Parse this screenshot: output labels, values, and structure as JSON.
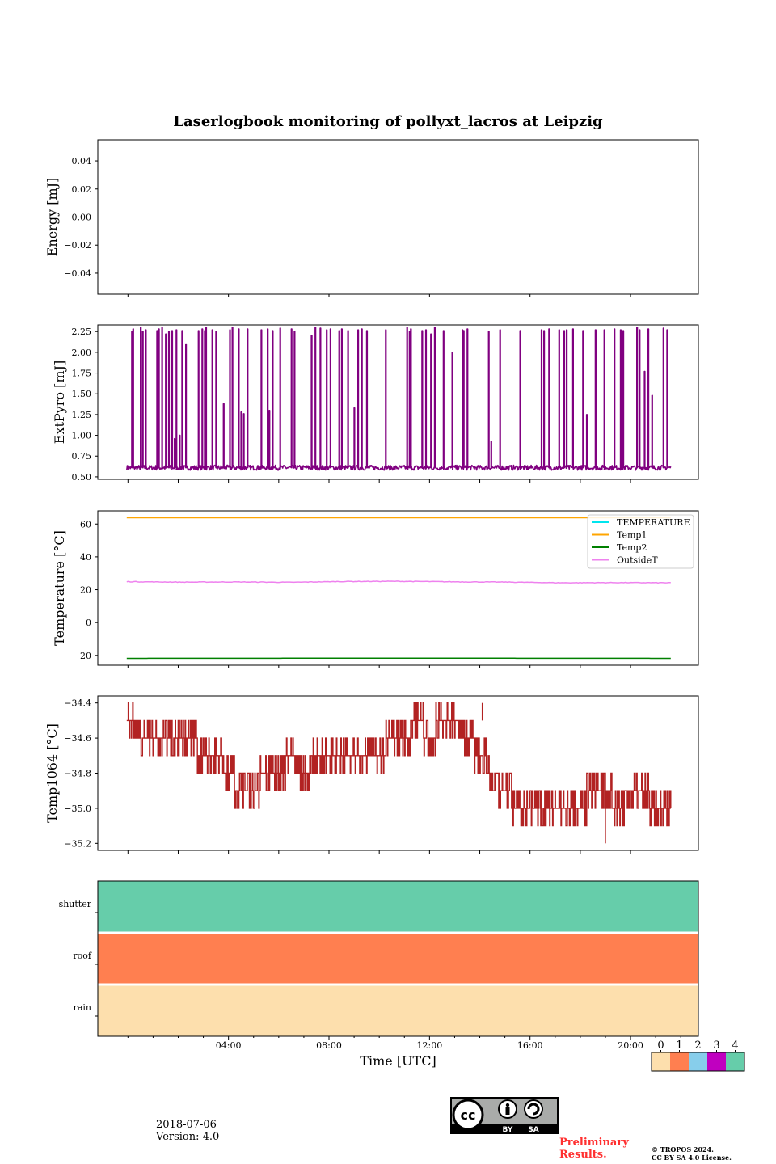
{
  "page_title": "Laserlogbook monitoring of pollyxt_lacros at Leipzig",
  "footer": {
    "date": "2018-07-06",
    "version": "Version: 4.0",
    "preliminary_1": "Preliminary",
    "preliminary_2": "Results.",
    "copyright_1": "© TROPOS 2024.",
    "copyright_2": "CC BY SA 4.0 License.",
    "cc_by": "BY",
    "cc_sa": "SA",
    "cc_logo": "cc"
  },
  "chart_data": [
    {
      "id": "energy",
      "type": "line",
      "title": "",
      "ylabel": "Energy [mJ]",
      "xlabel": "",
      "ylim": [
        -0.055,
        0.055
      ],
      "yticks": [
        0.04,
        0.02,
        0.0,
        -0.02,
        -0.04
      ],
      "ytick_labels": [
        "0.04",
        "0.02",
        "0.00",
        "−0.02",
        "−0.04"
      ],
      "xlim_hours": [
        -1.2,
        22.7
      ],
      "series": []
    },
    {
      "id": "extpyro",
      "type": "line",
      "ylabel": "ExtPyro [mJ]",
      "ylim": [
        0.47,
        2.33
      ],
      "yticks": [
        0.5,
        0.75,
        1.0,
        1.25,
        1.5,
        1.75,
        2.0,
        2.25
      ],
      "ytick_labels": [
        "0.50",
        "0.75",
        "1.00",
        "1.25",
        "1.50",
        "1.75",
        "2.00",
        "2.25"
      ],
      "xlim_hours": [
        -1.2,
        22.7
      ],
      "series": [
        {
          "name": "ExtPyro",
          "color": "#800080",
          "baseline": 0.61,
          "time_range_hours": [
            -0.05,
            21.6
          ],
          "spike_times_hours": [
            0.0,
            0.15,
            0.2,
            0.5,
            0.58,
            0.7,
            1.15,
            1.22,
            1.35,
            1.5,
            1.62,
            1.75,
            1.85,
            1.92,
            2.05,
            2.15,
            2.3,
            2.8,
            2.95,
            3.05,
            3.1,
            3.35,
            3.5,
            3.8,
            4.05,
            4.15,
            4.4,
            4.5,
            4.6,
            4.75,
            5.3,
            5.55,
            5.62,
            5.75,
            6.05,
            6.5,
            6.62,
            7.3,
            7.45,
            7.65,
            7.9,
            8.05,
            8.4,
            8.5,
            8.75,
            9.0,
            9.15,
            9.3,
            9.5,
            10.25,
            11.1,
            11.2,
            11.25,
            11.7,
            11.85,
            12.05,
            12.2,
            12.55,
            12.9,
            13.3,
            13.35,
            13.5,
            14.35,
            14.45,
            14.8,
            15.6,
            16.45,
            16.55,
            16.75,
            17.15,
            17.35,
            17.45,
            17.7,
            18.1,
            18.25,
            18.6,
            18.95,
            19.35,
            19.6,
            19.7,
            20.25,
            20.35,
            20.55,
            20.7,
            20.85,
            21.3,
            21.45
          ],
          "spike_values": [
            0.63,
            2.25,
            2.28,
            2.3,
            2.25,
            2.27,
            2.26,
            2.28,
            2.3,
            2.22,
            2.25,
            2.26,
            0.96,
            2.27,
            1.0,
            2.26,
            2.1,
            2.26,
            2.28,
            2.26,
            2.3,
            2.27,
            2.25,
            1.38,
            2.27,
            2.3,
            2.28,
            1.28,
            1.26,
            2.28,
            2.27,
            2.28,
            1.3,
            2.26,
            2.29,
            2.28,
            2.25,
            2.2,
            2.3,
            2.29,
            2.27,
            2.28,
            2.26,
            2.28,
            2.26,
            1.33,
            2.27,
            2.28,
            2.26,
            2.27,
            2.3,
            2.25,
            2.28,
            2.26,
            2.27,
            2.22,
            2.3,
            2.26,
            2.0,
            2.27,
            2.26,
            2.28,
            2.25,
            0.93,
            2.27,
            2.26,
            2.27,
            2.26,
            2.28,
            2.27,
            2.26,
            2.27,
            2.28,
            2.26,
            1.25,
            2.27,
            2.27,
            2.28,
            2.27,
            2.26,
            2.3,
            2.27,
            1.77,
            2.28,
            1.48,
            2.29,
            2.27
          ]
        }
      ]
    },
    {
      "id": "temperature",
      "type": "line",
      "ylabel": "Temperature [°C]",
      "ylim": [
        -26,
        68
      ],
      "yticks": [
        60,
        40,
        20,
        0,
        -20
      ],
      "ytick_labels": [
        "60",
        "40",
        "20",
        "0",
        "−20"
      ],
      "xlim_hours": [
        -1.2,
        22.7
      ],
      "legend": "top-right",
      "series": [
        {
          "name": "TEMPERATURE",
          "color": "#00e5ee",
          "values": []
        },
        {
          "name": "Temp1",
          "color": "#ffa500",
          "time_range_hours": [
            -0.05,
            21.6
          ],
          "values": [
            63.8,
            63.8,
            63.8
          ]
        },
        {
          "name": "Temp2",
          "color": "#008000",
          "time_range_hours": [
            -0.05,
            21.6
          ],
          "values": [
            -21.8,
            -21.7,
            -21.8
          ]
        },
        {
          "name": "OutsideT",
          "color": "#ee82ee",
          "time_range_hours": [
            -0.05,
            21.6
          ],
          "values": [
            24.9,
            24.6,
            24.7,
            24.5,
            25.0,
            25.1,
            24.8,
            24.6,
            24.2,
            24.3,
            24.2
          ]
        }
      ]
    },
    {
      "id": "temp1064",
      "type": "line",
      "ylabel": "Temp1064 [°C]",
      "ylim": [
        -35.24,
        -34.36
      ],
      "yticks": [
        -34.4,
        -34.6,
        -34.8,
        -35.0,
        -35.2
      ],
      "ytick_labels": [
        "−34.4",
        "−34.6",
        "−34.8",
        "−35.0",
        "−35.2"
      ],
      "xlim_hours": [
        -1.2,
        22.7
      ],
      "series": [
        {
          "name": "Temp1064",
          "color": "#b22222",
          "time_hours": [
            -0.05,
            0.5,
            1.0,
            1.5,
            2.0,
            2.5,
            3.0,
            3.5,
            4.0,
            4.5,
            5.0,
            5.5,
            6.0,
            6.5,
            7.0,
            7.5,
            8.0,
            8.5,
            9.0,
            9.5,
            10.0,
            10.5,
            11.0,
            11.5,
            12.0,
            12.5,
            13.0,
            13.5,
            14.0,
            14.5,
            15.0,
            15.5,
            16.0,
            16.5,
            17.0,
            17.5,
            18.0,
            18.5,
            19.0,
            19.5,
            20.0,
            20.5,
            21.0,
            21.6
          ],
          "values": [
            -34.5,
            -34.6,
            -34.6,
            -34.6,
            -34.6,
            -34.6,
            -34.7,
            -34.7,
            -34.8,
            -34.9,
            -34.9,
            -34.8,
            -34.8,
            -34.7,
            -34.8,
            -34.7,
            -34.7,
            -34.7,
            -34.7,
            -34.7,
            -34.7,
            -34.6,
            -34.6,
            -34.5,
            -34.6,
            -34.5,
            -34.5,
            -34.6,
            -34.7,
            -34.8,
            -34.9,
            -35.0,
            -35.0,
            -35.0,
            -35.0,
            -35.0,
            -35.0,
            -34.9,
            -34.9,
            -35.0,
            -34.9,
            -34.9,
            -35.0,
            -35.0
          ],
          "peak_max": -34.4,
          "peak_min": -35.2
        }
      ]
    },
    {
      "id": "status",
      "type": "heatmap",
      "xlabel": "Time [UTC]",
      "rows": [
        "shutter",
        "roof",
        "rain"
      ],
      "row_values": [
        4,
        1,
        0
      ],
      "xlim_hours": [
        -1.2,
        22.7
      ],
      "xticks_hours": [
        4,
        8,
        12,
        16,
        20
      ],
      "xtick_labels": [
        "04:00",
        "08:00",
        "12:00",
        "16:00",
        "20:00"
      ],
      "colorbar": {
        "ticks": [
          "0",
          "1",
          "2",
          "3",
          "4"
        ],
        "colors": [
          "#fddfad",
          "#ff7f50",
          "#87ceeb",
          "#c000c0",
          "#66cdaa"
        ]
      }
    }
  ]
}
